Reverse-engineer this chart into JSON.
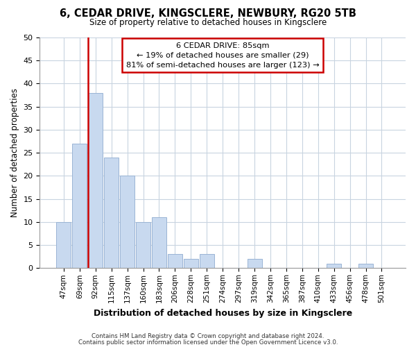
{
  "title": "6, CEDAR DRIVE, KINGSCLERE, NEWBURY, RG20 5TB",
  "subtitle": "Size of property relative to detached houses in Kingsclere",
  "xlabel": "Distribution of detached houses by size in Kingsclere",
  "ylabel": "Number of detached properties",
  "bar_labels": [
    "47sqm",
    "69sqm",
    "92sqm",
    "115sqm",
    "137sqm",
    "160sqm",
    "183sqm",
    "206sqm",
    "228sqm",
    "251sqm",
    "274sqm",
    "297sqm",
    "319sqm",
    "342sqm",
    "365sqm",
    "387sqm",
    "410sqm",
    "433sqm",
    "456sqm",
    "478sqm",
    "501sqm"
  ],
  "bar_values": [
    10,
    27,
    38,
    24,
    20,
    10,
    11,
    3,
    2,
    3,
    0,
    0,
    2,
    0,
    0,
    0,
    0,
    1,
    0,
    1,
    0
  ],
  "bar_color": "#c8d9ef",
  "bar_edge_color": "#9ab4d4",
  "vline_color": "#cc0000",
  "annotation_title": "6 CEDAR DRIVE: 85sqm",
  "annotation_line1": "← 19% of detached houses are smaller (29)",
  "annotation_line2": "81% of semi-detached houses are larger (123) →",
  "annotation_box_color": "#ffffff",
  "annotation_box_edge": "#cc0000",
  "ylim": [
    0,
    50
  ],
  "yticks": [
    0,
    5,
    10,
    15,
    20,
    25,
    30,
    35,
    40,
    45,
    50
  ],
  "footer1": "Contains HM Land Registry data © Crown copyright and database right 2024.",
  "footer2": "Contains public sector information licensed under the Open Government Licence v3.0.",
  "background_color": "#ffffff",
  "grid_color": "#c8d4e0"
}
